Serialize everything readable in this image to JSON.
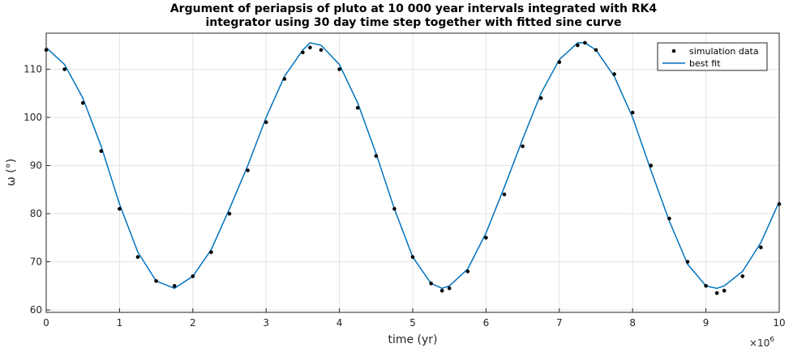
{
  "chart_data": {
    "type": "scatter",
    "title_line1": "Argument of periapsis of pluto at 10 000 year intervals integrated with RK4",
    "title_line2": "integrator using 30 day time step together with fitted sine curve",
    "xlabel": "time (yr)",
    "ylabel": "ω (°)",
    "x_exponent_label": "×10",
    "x_exponent_power": "6",
    "x_scale_factor": 1000000,
    "xlim": [
      0,
      10000000
    ],
    "ylim": [
      59.5,
      117.5
    ],
    "xticks": [
      0,
      1000000,
      2000000,
      3000000,
      4000000,
      5000000,
      6000000,
      7000000,
      8000000,
      9000000,
      10000000
    ],
    "xtick_labels": [
      "0",
      "1",
      "2",
      "3",
      "4",
      "5",
      "6",
      "7",
      "8",
      "9",
      "10"
    ],
    "yticks": [
      60,
      70,
      80,
      90,
      100,
      110
    ],
    "ytick_labels": [
      "60",
      "70",
      "80",
      "90",
      "100",
      "110"
    ],
    "grid": true,
    "legend_position": "top-right",
    "series": [
      {
        "name": "simulation data",
        "kind": "markers",
        "color": "#000000",
        "x": [
          0,
          250000,
          500000,
          750000,
          1000000,
          1250000,
          1500000,
          1750000,
          2000000,
          2250000,
          2500000,
          2750000,
          3000000,
          3250000,
          3500000,
          3600000,
          3750000,
          4000000,
          4250000,
          4500000,
          4750000,
          5000000,
          5250000,
          5400000,
          5500000,
          5750000,
          6000000,
          6250000,
          6500000,
          6750000,
          7000000,
          7250000,
          7350000,
          7500000,
          7750000,
          8000000,
          8250000,
          8500000,
          8750000,
          9000000,
          9150000,
          9250000,
          9500000,
          9750000,
          10000000
        ],
        "y": [
          114.0,
          110.0,
          103.0,
          93.0,
          81.0,
          71.0,
          66.0,
          65.0,
          67.0,
          72.0,
          80.0,
          89.0,
          99.0,
          108.0,
          113.5,
          114.5,
          114.0,
          110.0,
          102.0,
          92.0,
          81.0,
          71.0,
          65.5,
          64.0,
          64.5,
          68.0,
          75.0,
          84.0,
          94.0,
          104.0,
          111.5,
          115.0,
          115.5,
          114.0,
          109.0,
          101.0,
          90.0,
          79.0,
          70.0,
          65.0,
          63.5,
          64.0,
          67.0,
          73.0,
          82.0
        ]
      },
      {
        "name": "best fit",
        "kind": "line",
        "color": "#0072BD",
        "x": [
          0,
          250000,
          500000,
          750000,
          1000000,
          1250000,
          1500000,
          1750000,
          2000000,
          2250000,
          2500000,
          2750000,
          3000000,
          3250000,
          3500000,
          3600000,
          3750000,
          4000000,
          4250000,
          4500000,
          4750000,
          5000000,
          5250000,
          5400000,
          5500000,
          5750000,
          6000000,
          6250000,
          6500000,
          6750000,
          7000000,
          7250000,
          7350000,
          7500000,
          7750000,
          8000000,
          8250000,
          8500000,
          8750000,
          9000000,
          9150000,
          9250000,
          9500000,
          9750000,
          10000000
        ],
        "y": [
          114.5,
          111.0,
          104.0,
          94.0,
          82.0,
          72.0,
          66.0,
          64.5,
          67.0,
          72.5,
          81.0,
          90.0,
          100.0,
          108.5,
          114.0,
          115.5,
          115.0,
          111.0,
          103.0,
          92.5,
          81.0,
          71.0,
          65.5,
          64.5,
          65.0,
          68.5,
          76.0,
          85.5,
          95.5,
          105.0,
          112.0,
          115.5,
          115.5,
          114.0,
          108.5,
          100.0,
          89.0,
          78.5,
          69.5,
          65.0,
          64.5,
          65.0,
          68.0,
          74.0,
          82.5
        ]
      }
    ]
  }
}
